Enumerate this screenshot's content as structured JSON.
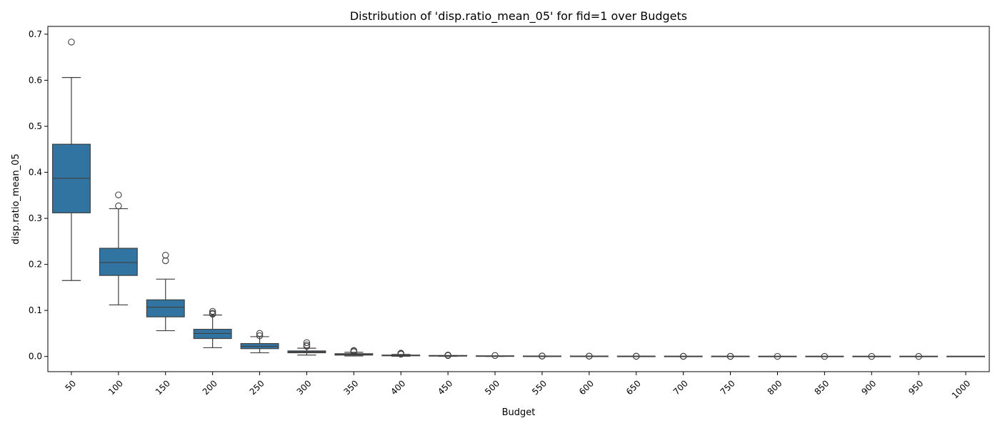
{
  "chart_data": {
    "type": "box",
    "title": "Distribution of 'disp.ratio_mean_05' for fid=1 over Budgets",
    "xlabel": "Budget",
    "ylabel": "disp.ratio_mean_05",
    "ylim": [
      -0.033,
      0.717
    ],
    "yticks": [
      "0.0",
      "0.1",
      "0.2",
      "0.3",
      "0.4",
      "0.5",
      "0.6",
      "0.7"
    ],
    "grid": false,
    "box_color": "#3274a1",
    "line_color": "#404040",
    "categories": [
      "50",
      "100",
      "150",
      "200",
      "250",
      "300",
      "350",
      "400",
      "450",
      "500",
      "550",
      "600",
      "650",
      "700",
      "750",
      "800",
      "850",
      "900",
      "950",
      "1000"
    ],
    "boxes": [
      {
        "category": "50",
        "whisker_low": 0.165,
        "q1": 0.312,
        "median": 0.387,
        "q3": 0.461,
        "whisker_high": 0.606,
        "outliers": [
          0.683
        ]
      },
      {
        "category": "100",
        "whisker_low": 0.112,
        "q1": 0.176,
        "median": 0.204,
        "q3": 0.235,
        "whisker_high": 0.321,
        "outliers": [
          0.327,
          0.351
        ]
      },
      {
        "category": "150",
        "whisker_low": 0.056,
        "q1": 0.086,
        "median": 0.107,
        "q3": 0.123,
        "whisker_high": 0.168,
        "outliers": [
          0.208,
          0.22
        ]
      },
      {
        "category": "200",
        "whisker_low": 0.019,
        "q1": 0.039,
        "median": 0.05,
        "q3": 0.059,
        "whisker_high": 0.09,
        "outliers": [
          0.092,
          0.094,
          0.098
        ]
      },
      {
        "category": "250",
        "whisker_low": 0.008,
        "q1": 0.017,
        "median": 0.022,
        "q3": 0.028,
        "whisker_high": 0.043,
        "outliers": [
          0.045,
          0.05
        ]
      },
      {
        "category": "300",
        "whisker_low": 0.003,
        "q1": 0.008,
        "median": 0.01,
        "q3": 0.012,
        "whisker_high": 0.018,
        "outliers": [
          0.022,
          0.025,
          0.03
        ]
      },
      {
        "category": "350",
        "whisker_low": 0.001,
        "q1": 0.003,
        "median": 0.004,
        "q3": 0.006,
        "whisker_high": 0.009,
        "outliers": [
          0.01,
          0.012,
          0.013
        ]
      },
      {
        "category": "400",
        "whisker_low": 0.0005,
        "q1": 0.0015,
        "median": 0.002,
        "q3": 0.003,
        "whisker_high": 0.0045,
        "outliers": [
          0.005,
          0.006,
          0.007
        ]
      },
      {
        "category": "450",
        "whisker_low": 0.0002,
        "q1": 0.0007,
        "median": 0.001,
        "q3": 0.0015,
        "whisker_high": 0.002,
        "outliers": [
          0.002,
          0.003
        ]
      },
      {
        "category": "500",
        "whisker_low": 0.0001,
        "q1": 0.0003,
        "median": 0.0005,
        "q3": 0.0008,
        "whisker_high": 0.001,
        "outliers": [
          0.002
        ]
      },
      {
        "category": "550",
        "whisker_low": 0.0,
        "q1": 0.0002,
        "median": 0.0003,
        "q3": 0.0004,
        "whisker_high": 0.0006,
        "outliers": [
          0.0008,
          0.001
        ]
      },
      {
        "category": "600",
        "whisker_low": 0.0,
        "q1": 0.0001,
        "median": 0.0002,
        "q3": 0.0003,
        "whisker_high": 0.0004,
        "outliers": [
          0.0006,
          0.0008
        ]
      },
      {
        "category": "650",
        "whisker_low": 0.0,
        "q1": 0.0001,
        "median": 0.0001,
        "q3": 0.0002,
        "whisker_high": 0.0003,
        "outliers": [
          0.0004,
          0.0005
        ]
      },
      {
        "category": "700",
        "whisker_low": 0.0,
        "q1": 0.0,
        "median": 0.0001,
        "q3": 0.0001,
        "whisker_high": 0.0002,
        "outliers": [
          0.0003,
          0.0004
        ]
      },
      {
        "category": "750",
        "whisker_low": 0.0,
        "q1": 0.0,
        "median": 0.0,
        "q3": 0.0001,
        "whisker_high": 0.0001,
        "outliers": [
          0.0002,
          0.0003
        ]
      },
      {
        "category": "800",
        "whisker_low": 0.0,
        "q1": 0.0,
        "median": 0.0,
        "q3": 0.0,
        "whisker_high": 0.0001,
        "outliers": [
          0.0002
        ]
      },
      {
        "category": "850",
        "whisker_low": 0.0,
        "q1": 0.0,
        "median": 0.0,
        "q3": 0.0,
        "whisker_high": 0.0001,
        "outliers": [
          0.0001
        ]
      },
      {
        "category": "900",
        "whisker_low": 0.0,
        "q1": 0.0,
        "median": 0.0,
        "q3": 0.0,
        "whisker_high": 0.0,
        "outliers": [
          0.0001
        ]
      },
      {
        "category": "950",
        "whisker_low": 0.0,
        "q1": 0.0,
        "median": 0.0,
        "q3": 0.0,
        "whisker_high": 0.0,
        "outliers": [
          0.0001
        ]
      },
      {
        "category": "1000",
        "whisker_low": 0.0,
        "q1": 0.0,
        "median": 0.0,
        "q3": 0.0,
        "whisker_high": 0.0,
        "outliers": []
      }
    ]
  }
}
